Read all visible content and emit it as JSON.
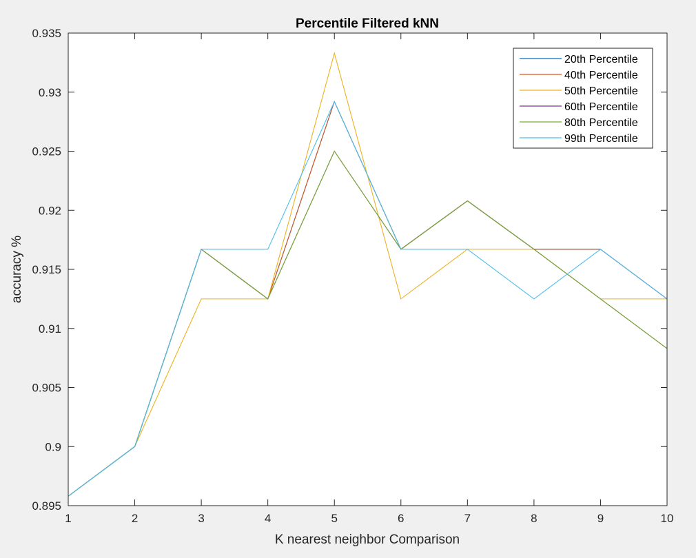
{
  "chart_data": {
    "type": "line",
    "title": "Percentile Filtered kNN",
    "xlabel": "K nearest neighbor Comparison",
    "ylabel": "accuracy %",
    "xlim": [
      1,
      10
    ],
    "ylim": [
      0.895,
      0.935
    ],
    "xticks": [
      "1",
      "2",
      "3",
      "4",
      "5",
      "6",
      "7",
      "8",
      "9",
      "10"
    ],
    "yticks": [
      "0.895",
      "0.9",
      "0.905",
      "0.91",
      "0.915",
      "0.92",
      "0.925",
      "0.93",
      "0.935"
    ],
    "grid": false,
    "legend_position": "top-right",
    "x": [
      1,
      2,
      3,
      4,
      5,
      6,
      7,
      8,
      9,
      10
    ],
    "series": [
      {
        "name": "20th Percentile",
        "color": "#0072BD",
        "values": [
          0.8958,
          0.9,
          0.9167,
          0.9125,
          0.9292,
          0.9167,
          0.9208,
          0.9167,
          0.9167,
          0.9125
        ]
      },
      {
        "name": "40th Percentile",
        "color": "#D95319",
        "values": [
          0.8958,
          0.9,
          0.9167,
          0.9125,
          0.9292,
          0.9167,
          0.9208,
          0.9167,
          0.9167,
          0.9125
        ]
      },
      {
        "name": "50th Percentile",
        "color": "#EDB120",
        "values": [
          0.8958,
          0.9,
          0.9125,
          0.9125,
          0.9333,
          0.9125,
          0.9167,
          0.9167,
          0.9125,
          0.9125
        ]
      },
      {
        "name": "60th Percentile",
        "color": "#7E2F8E",
        "values": [
          0.8958,
          0.9,
          0.9167,
          0.9125,
          0.925,
          0.9167,
          0.9208,
          0.9167,
          0.9125,
          0.9083
        ]
      },
      {
        "name": "80th Percentile",
        "color": "#77AC30",
        "values": [
          0.8958,
          0.9,
          0.9167,
          0.9125,
          0.925,
          0.9167,
          0.9208,
          0.9167,
          0.9125,
          0.9083
        ]
      },
      {
        "name": "99th Percentile",
        "color": "#4DBEEE",
        "values": [
          0.8958,
          0.9,
          0.9167,
          0.9167,
          0.9292,
          0.9167,
          0.9167,
          0.9125,
          0.9167,
          0.9125
        ]
      }
    ]
  }
}
